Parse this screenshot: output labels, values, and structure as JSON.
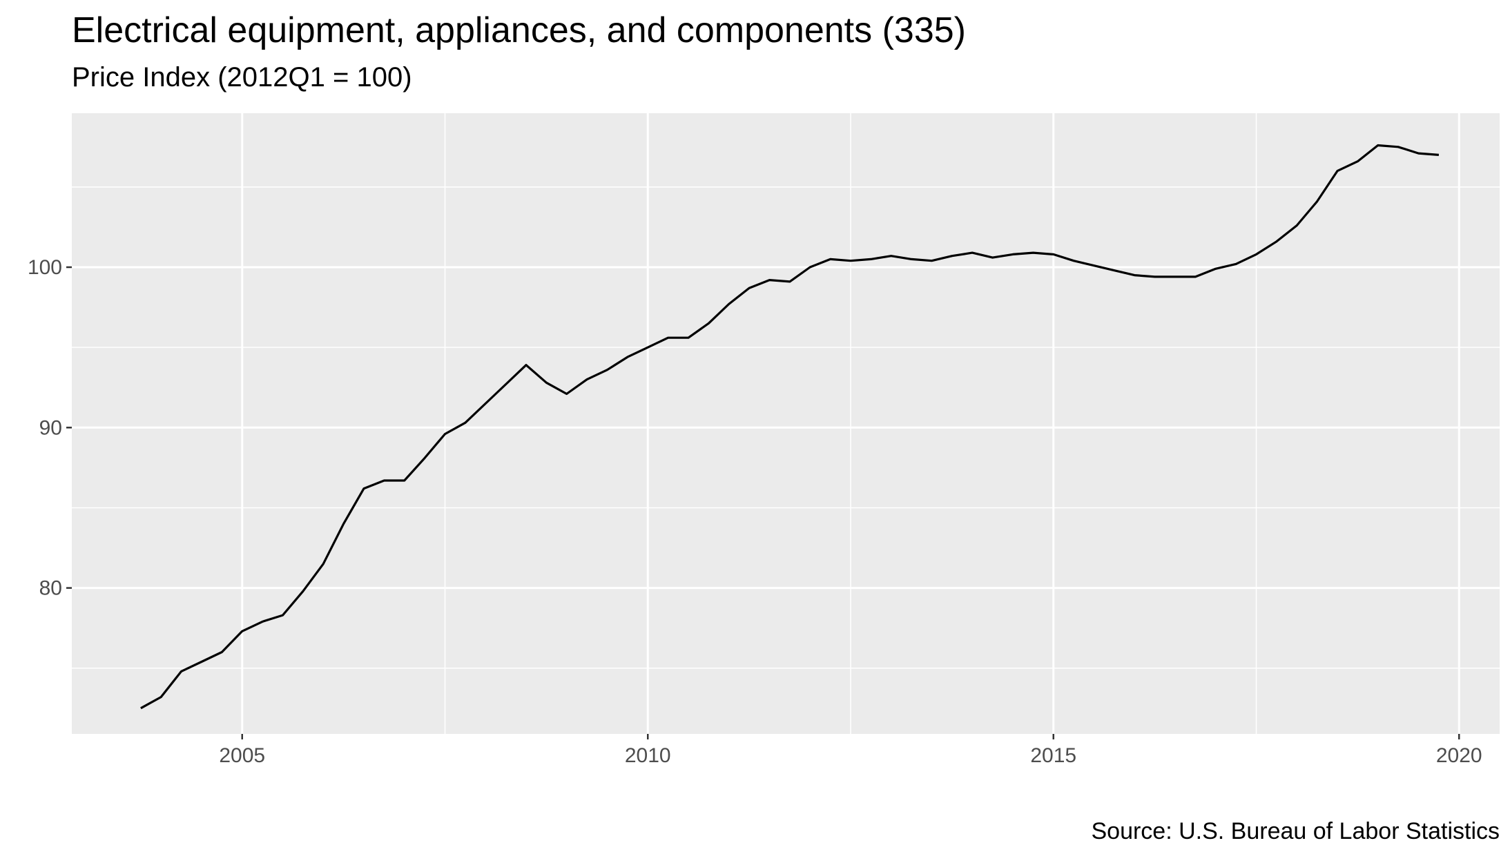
{
  "chart_data": {
    "type": "line",
    "title": "Electrical equipment, appliances, and components (335)",
    "subtitle": "Price Index (2012Q1 = 100)",
    "caption": "Source: U.S. Bureau of Labor Statistics",
    "xlabel": "",
    "ylabel": "",
    "xlim": [
      2002.9,
      2020.5
    ],
    "ylim": [
      70.9,
      109.6
    ],
    "x_ticks": [
      2005,
      2010,
      2015,
      2020
    ],
    "y_ticks": [
      80,
      90,
      100
    ],
    "grid": true,
    "background": "#EBEBEB",
    "line_color": "#000000",
    "series": [
      {
        "x": [
          2003.75,
          2004.0,
          2004.25,
          2004.5,
          2004.75,
          2005.0,
          2005.25,
          2005.5,
          2005.75,
          2006.0,
          2006.25,
          2006.5,
          2006.75,
          2007.0,
          2007.25,
          2007.5,
          2007.75,
          2008.0,
          2008.25,
          2008.5,
          2008.75,
          2009.0,
          2009.25,
          2009.5,
          2009.75,
          2010.0,
          2010.25,
          2010.5,
          2010.75,
          2011.0,
          2011.25,
          2011.5,
          2011.75,
          2012.0,
          2012.25,
          2012.5,
          2012.75,
          2013.0,
          2013.25,
          2013.5,
          2013.75,
          2014.0,
          2014.25,
          2014.5,
          2014.75,
          2015.0,
          2015.25,
          2015.5,
          2015.75,
          2016.0,
          2016.25,
          2016.5,
          2016.75,
          2017.0,
          2017.25,
          2017.5,
          2017.75,
          2018.0,
          2018.25,
          2018.5,
          2018.75,
          2019.0,
          2019.25,
          2019.5,
          2019.75
        ],
        "values": [
          72.5,
          73.2,
          74.8,
          75.4,
          76.0,
          77.3,
          77.9,
          78.3,
          79.8,
          81.5,
          84.0,
          86.2,
          86.7,
          86.7,
          88.1,
          89.6,
          90.3,
          91.5,
          92.7,
          93.9,
          92.8,
          92.1,
          93.0,
          93.6,
          94.4,
          95.0,
          95.6,
          95.6,
          96.5,
          97.7,
          98.7,
          99.2,
          99.1,
          100.0,
          100.5,
          100.4,
          100.5,
          100.7,
          100.5,
          100.4,
          100.7,
          100.9,
          100.6,
          100.8,
          100.9,
          100.8,
          100.4,
          100.1,
          99.8,
          99.5,
          99.4,
          99.4,
          99.4,
          99.9,
          100.2,
          100.8,
          101.6,
          102.6,
          104.1,
          106.0,
          106.6,
          107.6,
          107.5,
          107.1,
          107.0
        ]
      }
    ]
  }
}
